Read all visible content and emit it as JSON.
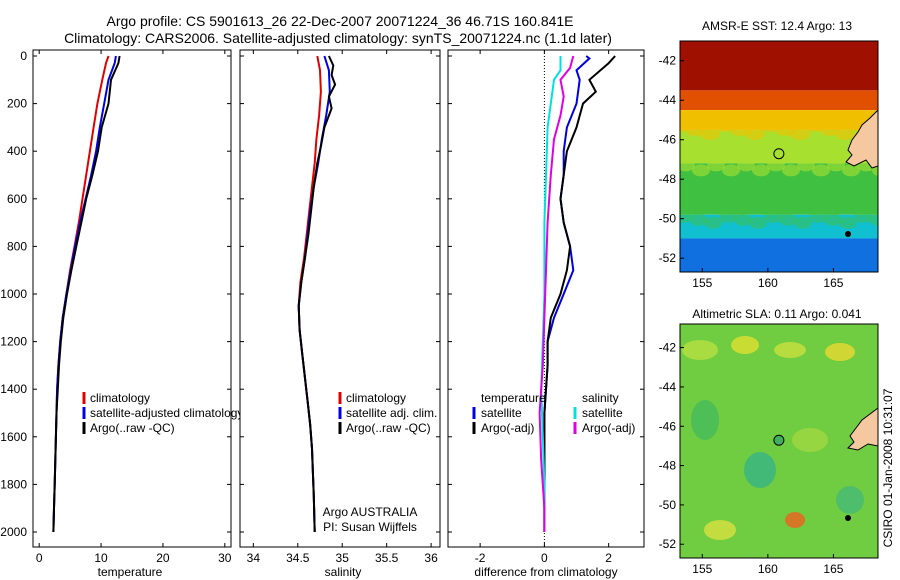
{
  "header": {
    "line1": "Argo profile: CS 5901613_26 22-Dec-2007 20071224_36 46.71S 160.841E",
    "line2": "Climatology: CARS2006. Satellite-adjusted climatology: synTS_20071224.nc (1.1d later)"
  },
  "colors": {
    "climatology": "#e00000",
    "satellite": "#0000e0",
    "argo": "#000000",
    "cyan": "#00e0e0",
    "magenta": "#e000e0"
  },
  "chart_data": [
    {
      "id": "temperature",
      "type": "line",
      "xlabel": "temperature",
      "ylabel": "",
      "xlim": [
        -1,
        31
      ],
      "ylim": [
        2060,
        0
      ],
      "xticks": [
        0,
        10,
        20,
        30
      ],
      "yticks": [
        0,
        200,
        400,
        600,
        800,
        1000,
        1200,
        1400,
        1600,
        1800,
        2000
      ],
      "legend": [
        "climatology",
        "satellite-adjusted climatology",
        "Argo(..raw -QC)"
      ],
      "series": [
        {
          "name": "climatology",
          "color": "#e00000",
          "points": [
            [
              11.2,
              0
            ],
            [
              10.8,
              30
            ],
            [
              10.2,
              100
            ],
            [
              9.4,
              200
            ],
            [
              8.8,
              300
            ],
            [
              8.2,
              400
            ],
            [
              7.6,
              500
            ],
            [
              7.0,
              600
            ],
            [
              6.4,
              700
            ],
            [
              5.7,
              800
            ],
            [
              5.0,
              900
            ],
            [
              4.4,
              1000
            ],
            [
              3.8,
              1100
            ],
            [
              3.4,
              1200
            ],
            [
              3.1,
              1300
            ],
            [
              2.9,
              1400
            ],
            [
              2.8,
              1500
            ],
            [
              2.7,
              1600
            ],
            [
              2.6,
              1700
            ],
            [
              2.5,
              1800
            ],
            [
              2.4,
              1900
            ],
            [
              2.3,
              2000
            ]
          ]
        },
        {
          "name": "satellite-adjusted climatology",
          "color": "#0000e0",
          "points": [
            [
              12.4,
              0
            ],
            [
              12.2,
              30
            ],
            [
              11.2,
              100
            ],
            [
              10.5,
              200
            ],
            [
              9.8,
              300
            ],
            [
              9.2,
              400
            ],
            [
              8.4,
              500
            ],
            [
              7.5,
              600
            ],
            [
              6.6,
              700
            ],
            [
              5.8,
              800
            ],
            [
              5.1,
              900
            ],
            [
              4.4,
              1000
            ],
            [
              3.8,
              1100
            ],
            [
              3.4,
              1200
            ],
            [
              3.1,
              1300
            ],
            [
              2.9,
              1400
            ],
            [
              2.8,
              1500
            ],
            [
              2.7,
              1600
            ],
            [
              2.6,
              1700
            ],
            [
              2.5,
              1800
            ],
            [
              2.4,
              1900
            ],
            [
              2.3,
              2000
            ]
          ]
        },
        {
          "name": "Argo(..raw -QC)",
          "color": "#000000",
          "points": [
            [
              13.0,
              0
            ],
            [
              12.8,
              30
            ],
            [
              11.6,
              100
            ],
            [
              11.2,
              200
            ],
            [
              10.1,
              300
            ],
            [
              9.5,
              400
            ],
            [
              8.6,
              500
            ],
            [
              7.6,
              600
            ],
            [
              6.8,
              700
            ],
            [
              6.0,
              800
            ],
            [
              5.2,
              900
            ],
            [
              4.5,
              1000
            ],
            [
              3.9,
              1100
            ],
            [
              3.5,
              1200
            ],
            [
              3.2,
              1300
            ],
            [
              3.0,
              1400
            ],
            [
              2.8,
              1500
            ],
            [
              2.7,
              1600
            ],
            [
              2.6,
              1700
            ],
            [
              2.5,
              1800
            ],
            [
              2.4,
              1900
            ],
            [
              2.3,
              2000
            ]
          ]
        }
      ]
    },
    {
      "id": "salinity",
      "type": "line",
      "xlabel": "salinity",
      "ylabel": "",
      "xlim": [
        33.85,
        36.1
      ],
      "ylim": [
        2060,
        0
      ],
      "xticks": [
        34,
        34.5,
        35,
        35.5,
        36
      ],
      "yticks": [
        0,
        200,
        400,
        600,
        800,
        1000,
        1200,
        1400,
        1600,
        1800,
        2000
      ],
      "legend": [
        "climatology",
        "satellite adj. clim.",
        "Argo(..raw -QC)"
      ],
      "annotation": [
        "Argo AUSTRALIA",
        "PI: Susan Wijffels"
      ],
      "series": [
        {
          "name": "climatology",
          "color": "#e00000",
          "points": [
            [
              34.72,
              0
            ],
            [
              34.75,
              60
            ],
            [
              34.76,
              150
            ],
            [
              34.74,
              250
            ],
            [
              34.71,
              350
            ],
            [
              34.69,
              450
            ],
            [
              34.66,
              550
            ],
            [
              34.63,
              650
            ],
            [
              34.6,
              750
            ],
            [
              34.57,
              850
            ],
            [
              34.53,
              950
            ],
            [
              34.51,
              1050
            ],
            [
              34.52,
              1150
            ],
            [
              34.55,
              1250
            ],
            [
              34.58,
              1350
            ],
            [
              34.61,
              1450
            ],
            [
              34.64,
              1550
            ],
            [
              34.66,
              1650
            ],
            [
              34.67,
              1750
            ],
            [
              34.68,
              1850
            ],
            [
              34.69,
              2000
            ]
          ]
        },
        {
          "name": "satellite adj. clim.",
          "color": "#0000e0",
          "points": [
            [
              34.8,
              0
            ],
            [
              34.85,
              60
            ],
            [
              34.86,
              150
            ],
            [
              34.82,
              250
            ],
            [
              34.77,
              350
            ],
            [
              34.73,
              450
            ],
            [
              34.68,
              550
            ],
            [
              34.64,
              650
            ],
            [
              34.61,
              750
            ],
            [
              34.58,
              850
            ],
            [
              34.54,
              950
            ],
            [
              34.51,
              1050
            ],
            [
              34.52,
              1150
            ],
            [
              34.55,
              1250
            ],
            [
              34.58,
              1350
            ],
            [
              34.61,
              1450
            ],
            [
              34.64,
              1550
            ],
            [
              34.66,
              1650
            ],
            [
              34.67,
              1750
            ],
            [
              34.68,
              1850
            ],
            [
              34.69,
              2000
            ]
          ]
        },
        {
          "name": "Argo(..raw -QC)",
          "color": "#000000",
          "points": [
            [
              34.85,
              0
            ],
            [
              34.9,
              40
            ],
            [
              34.88,
              80
            ],
            [
              34.92,
              120
            ],
            [
              34.85,
              170
            ],
            [
              34.88,
              220
            ],
            [
              34.8,
              300
            ],
            [
              34.76,
              380
            ],
            [
              34.72,
              450
            ],
            [
              34.68,
              550
            ],
            [
              34.65,
              650
            ],
            [
              34.62,
              750
            ],
            [
              34.58,
              850
            ],
            [
              34.54,
              950
            ],
            [
              34.51,
              1050
            ],
            [
              34.52,
              1150
            ],
            [
              34.55,
              1250
            ],
            [
              34.58,
              1350
            ],
            [
              34.61,
              1450
            ],
            [
              34.64,
              1550
            ],
            [
              34.66,
              1650
            ],
            [
              34.67,
              1750
            ],
            [
              34.68,
              1850
            ],
            [
              34.69,
              2000
            ]
          ]
        }
      ]
    },
    {
      "id": "difference",
      "type": "line",
      "xlabel": "difference from climatology",
      "ylabel": "",
      "xlim": [
        -3,
        3.1
      ],
      "ylim": [
        2060,
        0
      ],
      "xticks": [
        -2,
        0,
        2
      ],
      "yticks": [
        0,
        200,
        400,
        600,
        800,
        1000,
        1200,
        1400,
        1600,
        1800,
        2000
      ],
      "legend_left_title": "temperature",
      "legend_right_title": "salinity",
      "legend": [
        "satellite",
        "Argo(-adj)",
        "satellite",
        "Argo(-adj)"
      ],
      "series": [
        {
          "name": "temperature satellite",
          "color": "#0000e0",
          "points": [
            [
              1.3,
              0
            ],
            [
              1.4,
              10
            ],
            [
              1.0,
              60
            ],
            [
              1.1,
              100
            ],
            [
              1.0,
              200
            ],
            [
              0.7,
              300
            ],
            [
              0.6,
              400
            ],
            [
              0.6,
              500
            ],
            [
              0.5,
              600
            ],
            [
              0.6,
              700
            ],
            [
              0.8,
              800
            ],
            [
              0.9,
              900
            ],
            [
              0.6,
              1000
            ],
            [
              0.3,
              1100
            ],
            [
              0.1,
              1200
            ],
            [
              0.1,
              1300
            ],
            [
              0.05,
              1400
            ],
            [
              0.0,
              1500
            ],
            [
              0.0,
              1600
            ],
            [
              0.0,
              1700
            ],
            [
              0.0,
              1800
            ],
            [
              0.0,
              1900
            ],
            [
              0.0,
              2000
            ]
          ]
        },
        {
          "name": "temperature Argo(-adj)",
          "color": "#000000",
          "points": [
            [
              2.2,
              0
            ],
            [
              2.0,
              30
            ],
            [
              1.4,
              100
            ],
            [
              1.6,
              150
            ],
            [
              1.2,
              200
            ],
            [
              1.0,
              300
            ],
            [
              0.7,
              400
            ],
            [
              0.6,
              500
            ],
            [
              0.5,
              600
            ],
            [
              0.6,
              700
            ],
            [
              0.8,
              800
            ],
            [
              0.7,
              900
            ],
            [
              0.5,
              1000
            ],
            [
              0.2,
              1100
            ],
            [
              0.1,
              1200
            ],
            [
              0.1,
              1300
            ],
            [
              0.05,
              1400
            ],
            [
              0.0,
              1500
            ],
            [
              0.0,
              1600
            ],
            [
              0.0,
              1700
            ],
            [
              0.0,
              1800
            ],
            [
              0.0,
              1900
            ],
            [
              0.0,
              2000
            ]
          ]
        },
        {
          "name": "salinity satellite",
          "color": "#00e0e0",
          "points": [
            [
              0.5,
              0
            ],
            [
              0.5,
              60
            ],
            [
              0.3,
              100
            ],
            [
              0.1,
              300
            ],
            [
              0.05,
              500
            ],
            [
              0.0,
              700
            ],
            [
              0.0,
              1000
            ],
            [
              -0.05,
              1200
            ],
            [
              -0.1,
              1400
            ],
            [
              -0.05,
              1600
            ],
            [
              0.0,
              1800
            ],
            [
              0.0,
              2000
            ]
          ]
        },
        {
          "name": "salinity Argo(-adj)",
          "color": "#e000e0",
          "points": [
            [
              0.9,
              0
            ],
            [
              0.8,
              50
            ],
            [
              0.5,
              100
            ],
            [
              0.6,
              170
            ],
            [
              0.5,
              250
            ],
            [
              0.3,
              350
            ],
            [
              0.2,
              500
            ],
            [
              0.1,
              700
            ],
            [
              0.05,
              900
            ],
            [
              0.0,
              1100
            ],
            [
              -0.05,
              1300
            ],
            [
              -0.15,
              1500
            ],
            [
              -0.1,
              1700
            ],
            [
              0.0,
              1900
            ],
            [
              0.0,
              2000
            ]
          ]
        }
      ]
    },
    {
      "id": "sst-map",
      "type": "heatmap",
      "title": "AMSR-E SST: 12.4 Argo: 13",
      "xlim": [
        153.3,
        168.4
      ],
      "ylim": [
        -52.7,
        -41.0
      ],
      "xticks": [
        155,
        160,
        165
      ],
      "yticks": [
        -42,
        -44,
        -46,
        -48,
        -50,
        -52
      ],
      "marker": {
        "lon": 160.841,
        "lat": -46.71
      },
      "color_bands": [
        {
          "lat_from": -41.0,
          "lat_to": -43.5,
          "color": "#a01000"
        },
        {
          "lat_from": -43.5,
          "lat_to": -44.5,
          "color": "#e05000"
        },
        {
          "lat_from": -44.5,
          "lat_to": -45.5,
          "color": "#f0c000"
        },
        {
          "lat_from": -45.5,
          "lat_to": -47.2,
          "color": "#a8e030"
        },
        {
          "lat_from": -47.2,
          "lat_to": -49.8,
          "color": "#40c040"
        },
        {
          "lat_from": -49.8,
          "lat_to": -51.0,
          "color": "#10c0d0"
        },
        {
          "lat_from": -51.0,
          "lat_to": -52.7,
          "color": "#1070e0"
        }
      ]
    },
    {
      "id": "sla-map",
      "type": "heatmap",
      "title": "Altimetric SLA: 0.11 Argo: 0.041",
      "xlim": [
        153.3,
        168.4
      ],
      "ylim": [
        -52.7,
        -40.8
      ],
      "xticks": [
        155,
        160,
        165
      ],
      "yticks": [
        -42,
        -44,
        -46,
        -48,
        -50,
        -52
      ],
      "marker": {
        "lon": 160.841,
        "lat": -46.71
      },
      "base_color": "#70cc40"
    }
  ],
  "footer": {
    "credit": "CSIRO 01-Jan-2008 10:31:07"
  }
}
